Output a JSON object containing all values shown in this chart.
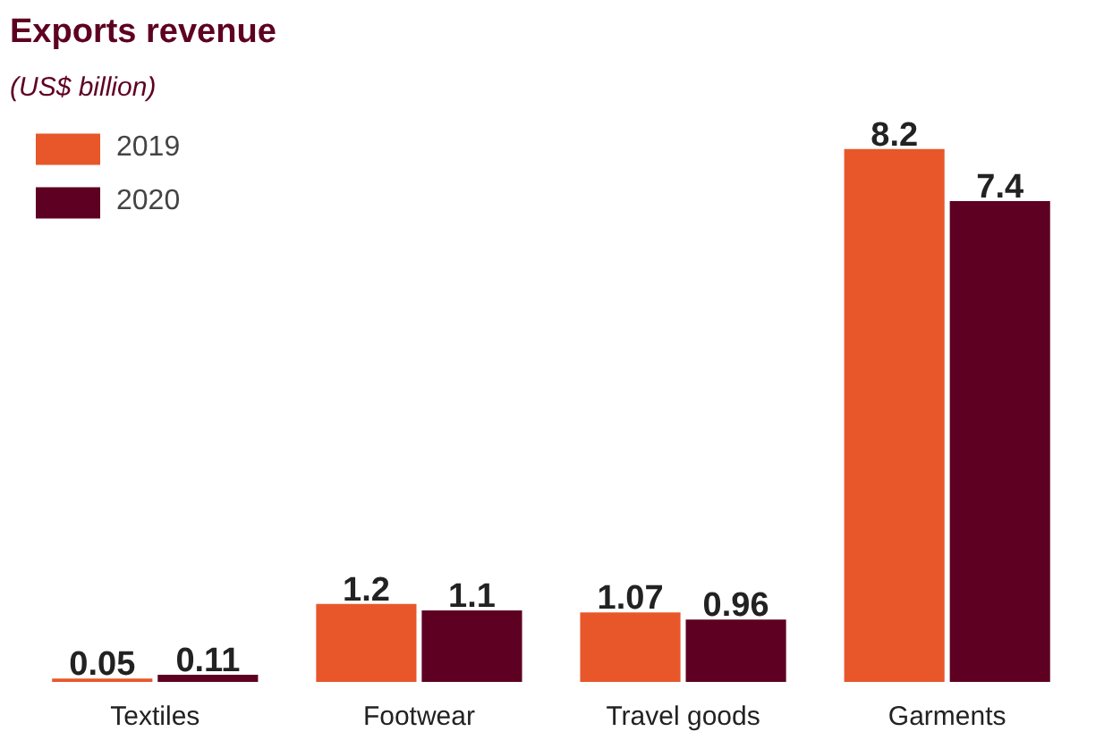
{
  "chart_data": {
    "type": "bar",
    "title": "Exports revenue",
    "subtitle": "(US$ billion)",
    "categories": [
      "Textiles",
      "Footwear",
      "Travel goods",
      "Garments"
    ],
    "series": [
      {
        "name": "2019",
        "color": "#e8572a",
        "values": [
          0.05,
          1.2,
          1.07,
          8.2
        ]
      },
      {
        "name": "2020",
        "color": "#5e0022",
        "values": [
          0.11,
          1.1,
          0.96,
          7.4
        ]
      }
    ],
    "data_labels": true,
    "legend": "top left",
    "grid": false
  }
}
